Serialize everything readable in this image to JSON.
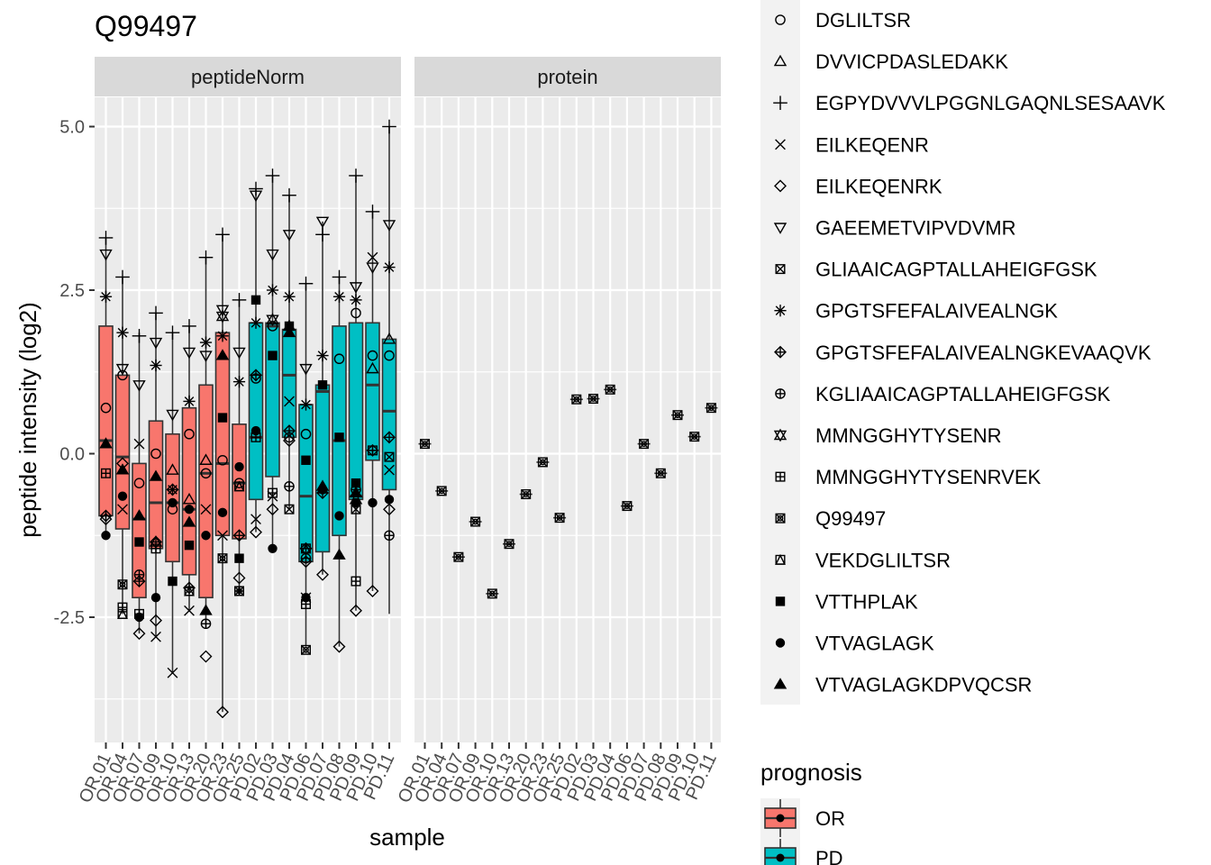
{
  "chart_data": {
    "type": "boxplot",
    "title": "Q99497",
    "xlabel": "sample",
    "ylabel": "peptide intensity (log2)",
    "facets": [
      "peptideNorm",
      "protein"
    ],
    "samples": [
      "OR.01",
      "OR.04",
      "OR.07",
      "OR.09",
      "OR.10",
      "OR.13",
      "OR.20",
      "OR.23",
      "OR.25",
      "PD.02",
      "PD.03",
      "PD.04",
      "PD.06",
      "PD.07",
      "PD.08",
      "PD.09",
      "PD.10",
      "PD.11"
    ],
    "prognosis": [
      "OR",
      "OR",
      "OR",
      "OR",
      "OR",
      "OR",
      "OR",
      "OR",
      "OR",
      "PD",
      "PD",
      "PD",
      "PD",
      "PD",
      "PD",
      "PD",
      "PD",
      "PD"
    ],
    "ylim": [
      -4.4,
      5.4
    ],
    "yticks": [
      -2.5,
      0.0,
      2.5,
      5.0
    ],
    "ytick_labels": [
      "-2.5",
      "0.0",
      "2.5",
      "5.0"
    ],
    "grid": true,
    "legend_position": "right",
    "colors": {
      "OR": "#F8766D",
      "PD": "#00BFC4",
      "panel": "#EBEBEB",
      "strip": "#D9D9D9",
      "box_line": "#333333"
    },
    "peptide_legend": {
      "entries": [
        "DGLILTSR",
        "DVVICPDASLEDAKK",
        "EGPYDVVVLPGGNLGAQNLSESAAVK",
        "EILKEQENR",
        "EILKEQENRK",
        "GAEEMETVIPVDVMR",
        "GLIAAICAGPTALLAHEIGFGSK",
        "GPGTSFEFALAIVEALNGK",
        "GPGTSFEFALAIVEALNGKEVAAQVK",
        "KGLIAAICAGPTALLAHEIGFGSK",
        "MMNGGHYTYSENR",
        "MMNGGHYTYSENRVEK",
        "Q99497",
        "VEKDGLILTSR",
        "VTTHPLAK",
        "VTVAGLAGK",
        "VTVAGLAGKDPVQCSR"
      ],
      "shapes": [
        "circle",
        "triangle",
        "plus",
        "cross",
        "diamond",
        "triangle-down",
        "square-cross",
        "asterisk",
        "diamond-plus",
        "circle-plus",
        "star-of-david",
        "square-plus",
        "circle-cross",
        "square-triangle",
        "square-filled",
        "circle-filled",
        "triangle-filled"
      ]
    },
    "prognosis_legend": {
      "title": "prognosis",
      "entries": [
        "OR",
        "PD"
      ]
    },
    "boxes": [
      {
        "q1": -0.95,
        "median": 0.2,
        "q3": 1.95,
        "whisker_low": -1.25,
        "whisker_high": 3.3
      },
      {
        "q1": -1.15,
        "median": -0.05,
        "q3": 1.2,
        "whisker_low": -2.45,
        "whisker_high": 2.7
      },
      {
        "q1": -2.2,
        "median": -1.0,
        "q3": -0.15,
        "whisker_low": -2.75,
        "whisker_high": 1.85
      },
      {
        "q1": -1.45,
        "median": -0.75,
        "q3": 0.5,
        "whisker_low": -2.8,
        "whisker_high": 2.15
      },
      {
        "q1": -1.65,
        "median": -0.75,
        "q3": 0.3,
        "whisker_low": -3.35,
        "whisker_high": 1.85
      },
      {
        "q1": -1.85,
        "median": -0.85,
        "q3": 0.7,
        "whisker_low": -2.4,
        "whisker_high": 1.95
      },
      {
        "q1": -2.2,
        "median": -0.3,
        "q3": 1.05,
        "whisker_low": -2.65,
        "whisker_high": 3.0
      },
      {
        "q1": -1.25,
        "median": -0.15,
        "q3": 1.85,
        "whisker_low": -3.95,
        "whisker_high": 3.35
      },
      {
        "q1": -1.3,
        "median": -0.45,
        "q3": 0.45,
        "whisker_low": -2.15,
        "whisker_high": 2.35
      },
      {
        "q1": -0.7,
        "median": 0.25,
        "q3": 2.0,
        "whisker_low": -1.2,
        "whisker_high": 4.05
      },
      {
        "q1": -0.35,
        "median": 1.95,
        "q3": 2.0,
        "whisker_low": -1.45,
        "whisker_high": 4.25
      },
      {
        "q1": 0.25,
        "median": 1.2,
        "q3": 1.9,
        "whisker_low": -0.85,
        "whisker_high": 3.95
      },
      {
        "q1": -1.65,
        "median": -0.65,
        "q3": 0.75,
        "whisker_low": -2.95,
        "whisker_high": 2.6
      },
      {
        "q1": -1.5,
        "median": 0.95,
        "q3": 1.05,
        "whisker_low": -1.85,
        "whisker_high": 3.55
      },
      {
        "q1": -1.25,
        "median": 0.2,
        "q3": 1.95,
        "whisker_low": -2.95,
        "whisker_high": 2.7
      },
      {
        "q1": -0.7,
        "median": -0.65,
        "q3": 2.0,
        "whisker_low": -2.4,
        "whisker_high": 4.25
      },
      {
        "q1": -0.1,
        "median": 1.05,
        "q3": 2.0,
        "whisker_low": -2.1,
        "whisker_high": 3.7
      },
      {
        "q1": -0.55,
        "median": 0.65,
        "q3": 1.75,
        "whisker_low": -2.45,
        "whisker_high": 5.0
      }
    ],
    "peptide_points": [
      [
        0.7,
        null,
        3.3,
        null,
        -1.0,
        3.05,
        null,
        2.4,
        -0.95,
        null,
        null,
        -0.3,
        null,
        null,
        null,
        -1.25,
        0.15,
        1.95
      ],
      [
        1.2,
        null,
        2.7,
        -0.85,
        -0.15,
        1.3,
        null,
        1.85,
        null,
        null,
        null,
        -2.35,
        -2.0,
        -2.45,
        null,
        -0.65,
        -0.25,
        0.1
      ],
      [
        -0.45,
        null,
        1.8,
        0.15,
        -2.75,
        1.05,
        null,
        null,
        -1.95,
        -1.85,
        null,
        -2.45,
        null,
        null,
        -1.35,
        -2.5,
        -0.95,
        -1.85
      ],
      [
        0.0,
        -1.35,
        2.15,
        -2.8,
        -2.55,
        1.7,
        null,
        1.35,
        -1.35,
        null,
        null,
        -1.45,
        null,
        null,
        null,
        -2.2,
        -0.35,
        0.15
      ],
      [
        -0.85,
        -0.25,
        1.85,
        -3.35,
        -0.55,
        0.6,
        null,
        -0.55,
        null,
        null,
        null,
        null,
        null,
        null,
        -1.95,
        -0.75,
        null,
        null
      ],
      [
        0.3,
        -0.7,
        1.95,
        -2.4,
        null,
        1.55,
        null,
        0.8,
        -2.05,
        null,
        null,
        null,
        null,
        -2.1,
        -1.4,
        -0.85,
        -1.05,
        null
      ],
      [
        -0.3,
        -0.1,
        3.0,
        -0.85,
        -3.1,
        1.5,
        null,
        1.7,
        null,
        -2.6,
        null,
        null,
        null,
        null,
        null,
        -1.25,
        -2.4,
        -2.2
      ],
      [
        -0.1,
        null,
        3.35,
        -1.25,
        -3.95,
        2.2,
        null,
        1.8,
        null,
        null,
        2.1,
        null,
        -1.6,
        null,
        0.55,
        -0.9,
        1.5,
        null
      ],
      [
        -0.45,
        null,
        2.35,
        null,
        -1.9,
        1.55,
        null,
        1.1,
        -1.25,
        null,
        null,
        -2.1,
        -2.1,
        -0.5,
        -1.6,
        -0.2,
        null,
        null
      ],
      [
        1.15,
        null,
        4.05,
        -1.0,
        -1.2,
        3.95,
        null,
        2.0,
        1.2,
        null,
        null,
        0.25,
        null,
        null,
        2.35,
        0.35,
        null,
        null
      ],
      [
        1.95,
        null,
        4.25,
        -0.65,
        -0.85,
        3.05,
        null,
        2.5,
        null,
        null,
        2.05,
        -0.6,
        null,
        null,
        1.5,
        -1.45,
        null,
        null
      ],
      [
        0.25,
        1.95,
        3.95,
        0.8,
        0.2,
        3.35,
        -0.85,
        2.4,
        0.35,
        -0.5,
        null,
        null,
        null,
        null,
        1.95,
        null,
        1.85,
        0.35
      ],
      [
        0.3,
        null,
        2.6,
        -2.2,
        -1.65,
        1.3,
        null,
        0.75,
        -1.45,
        -1.6,
        null,
        -2.3,
        -3.0,
        -1.45,
        -0.1,
        -2.2,
        null,
        null
      ],
      [
        null,
        null,
        3.35,
        null,
        -1.85,
        3.55,
        null,
        1.5,
        -0.6,
        null,
        null,
        null,
        null,
        null,
        1.05,
        -0.55,
        -0.5,
        null
      ],
      [
        1.45,
        null,
        2.7,
        null,
        -2.95,
        null,
        null,
        2.4,
        null,
        null,
        null,
        null,
        null,
        null,
        0.25,
        -0.95,
        -1.55,
        null
      ],
      [
        2.15,
        -0.7,
        4.25,
        null,
        -2.4,
        2.55,
        -0.85,
        2.35,
        null,
        -0.55,
        null,
        -1.95,
        null,
        null,
        -0.45,
        -0.75,
        -0.6,
        null
      ],
      [
        1.5,
        1.3,
        3.7,
        3.0,
        -2.1,
        2.85,
        null,
        null,
        0.05,
        null,
        null,
        0.05,
        null,
        null,
        null,
        -0.75,
        null,
        null
      ],
      [
        1.5,
        1.75,
        5.0,
        -0.25,
        -0.85,
        3.5,
        -0.05,
        2.85,
        0.25,
        -1.25,
        null,
        null,
        null,
        null,
        null,
        -0.7,
        null,
        1.75
      ]
    ],
    "protein_values": [
      0.15,
      -0.57,
      -1.58,
      -1.04,
      -2.14,
      -1.38,
      -0.62,
      -0.13,
      -0.98,
      0.83,
      0.84,
      0.98,
      -0.8,
      0.15,
      -0.3,
      0.59,
      0.26,
      0.7
    ]
  }
}
